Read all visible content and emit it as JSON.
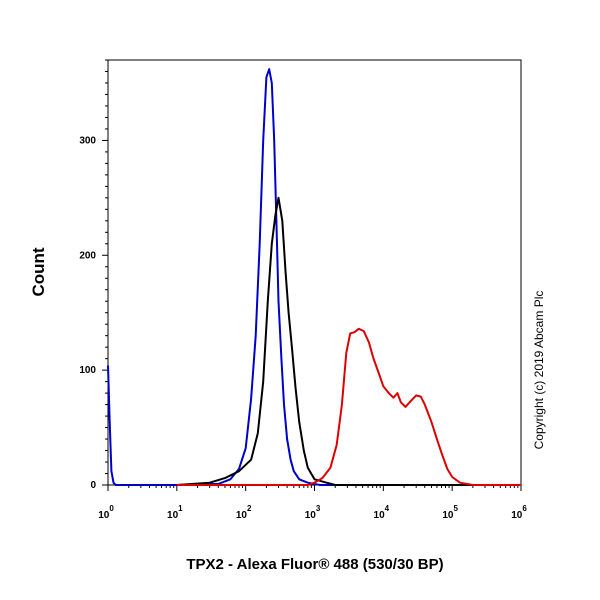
{
  "chart_data": {
    "type": "line",
    "title": "",
    "xlabel": "TPX2 - Alexa Fluor® 488 (530/30 BP)",
    "ylabel": "Count",
    "x_scale": "log",
    "xlim": [
      1,
      1000000
    ],
    "ylim": [
      0,
      370
    ],
    "x_ticks": [
      {
        "base": "10",
        "exp": "0",
        "value": 1
      },
      {
        "base": "10",
        "exp": "1",
        "value": 10
      },
      {
        "base": "10",
        "exp": "2",
        "value": 100
      },
      {
        "base": "10",
        "exp": "3",
        "value": 1000
      },
      {
        "base": "10",
        "exp": "4",
        "value": 10000
      },
      {
        "base": "10",
        "exp": "5",
        "value": 100000
      },
      {
        "base": "10",
        "exp": "6",
        "value": 1000000
      }
    ],
    "y_ticks": [
      "0",
      "100",
      "200",
      "300"
    ],
    "y_tick_values": [
      0,
      100,
      200,
      300
    ],
    "grid": false,
    "legend": "none",
    "series": [
      {
        "color": "#0000cc",
        "points": [
          [
            1,
            104
          ],
          [
            1.06,
            55
          ],
          [
            1.12,
            12
          ],
          [
            1.2,
            2
          ],
          [
            1.3,
            0
          ],
          [
            10,
            0
          ],
          [
            40,
            1
          ],
          [
            60,
            5
          ],
          [
            80,
            14
          ],
          [
            100,
            32
          ],
          [
            120,
            75
          ],
          [
            140,
            130
          ],
          [
            160,
            210
          ],
          [
            180,
            300
          ],
          [
            200,
            355
          ],
          [
            220,
            362
          ],
          [
            240,
            350
          ],
          [
            260,
            300
          ],
          [
            280,
            230
          ],
          [
            300,
            160
          ],
          [
            330,
            110
          ],
          [
            360,
            70
          ],
          [
            400,
            40
          ],
          [
            450,
            22
          ],
          [
            500,
            12
          ],
          [
            600,
            5
          ],
          [
            800,
            2
          ],
          [
            1200,
            0
          ],
          [
            1000000,
            0
          ]
        ]
      },
      {
        "color": "#000000",
        "points": [
          [
            10,
            0
          ],
          [
            30,
            2
          ],
          [
            50,
            6
          ],
          [
            80,
            12
          ],
          [
            120,
            22
          ],
          [
            150,
            45
          ],
          [
            180,
            90
          ],
          [
            210,
            160
          ],
          [
            240,
            210
          ],
          [
            270,
            235
          ],
          [
            300,
            250
          ],
          [
            340,
            230
          ],
          [
            380,
            185
          ],
          [
            420,
            150
          ],
          [
            470,
            120
          ],
          [
            530,
            85
          ],
          [
            600,
            55
          ],
          [
            700,
            30
          ],
          [
            800,
            15
          ],
          [
            1000,
            5
          ],
          [
            1500,
            2
          ],
          [
            2000,
            0
          ],
          [
            1000000,
            0
          ]
        ]
      },
      {
        "color": "#dd0000",
        "points": [
          [
            10,
            0
          ],
          [
            800,
            0
          ],
          [
            1000,
            2
          ],
          [
            1300,
            6
          ],
          [
            1700,
            15
          ],
          [
            2100,
            35
          ],
          [
            2500,
            70
          ],
          [
            2900,
            115
          ],
          [
            3300,
            132
          ],
          [
            3800,
            133
          ],
          [
            4400,
            136
          ],
          [
            5200,
            134
          ],
          [
            6200,
            124
          ],
          [
            7200,
            110
          ],
          [
            8500,
            98
          ],
          [
            10000,
            86
          ],
          [
            12000,
            80
          ],
          [
            14000,
            76
          ],
          [
            16000,
            80
          ],
          [
            18000,
            72
          ],
          [
            21000,
            68
          ],
          [
            25000,
            73
          ],
          [
            30000,
            78
          ],
          [
            35000,
            77
          ],
          [
            40000,
            70
          ],
          [
            50000,
            55
          ],
          [
            60000,
            40
          ],
          [
            70000,
            28
          ],
          [
            85000,
            14
          ],
          [
            100000,
            7
          ],
          [
            130000,
            2
          ],
          [
            200000,
            0
          ],
          [
            1000000,
            0
          ]
        ]
      }
    ]
  },
  "watermark": "Copyright (c) 2019 Abcam Plc"
}
